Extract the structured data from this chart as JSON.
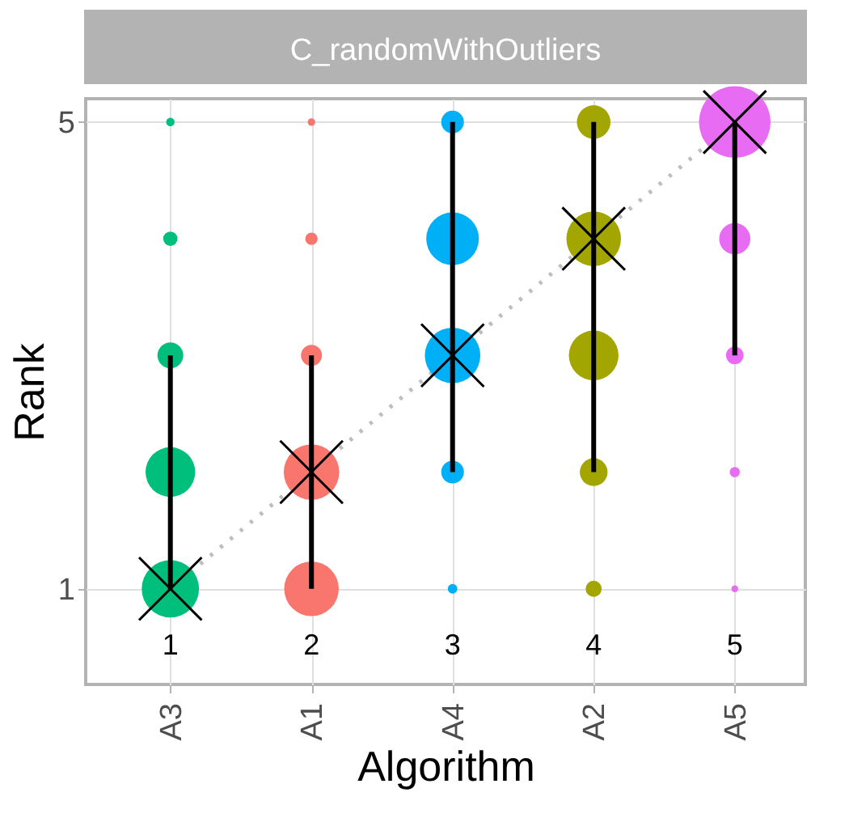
{
  "chart_data": {
    "type": "bubble",
    "title": "C_randomWithOutliers",
    "xlabel": "Algorithm",
    "ylabel": "Rank",
    "categories": [
      "A3",
      "A1",
      "A4",
      "A2",
      "A5"
    ],
    "ylim": [
      0.18,
      5.2
    ],
    "yticks": [
      1,
      5
    ],
    "grid": true,
    "annotations": [
      "1",
      "2",
      "3",
      "4",
      "5"
    ],
    "series": [
      {
        "type": "line",
        "marker": "cross",
        "line_style": "dotted",
        "color": "#bebebe",
        "values": [
          1,
          2,
          3,
          4,
          5
        ],
        "errors": [
          [
            1,
            3
          ],
          [
            1,
            3
          ],
          [
            2,
            5
          ],
          [
            2,
            5
          ],
          [
            3,
            5
          ]
        ]
      },
      {
        "color": "#00bf7d",
        "x": [
          "A3",
          "A3",
          "A3",
          "A3",
          "A3"
        ],
        "values": [
          1,
          2,
          3,
          4,
          5
        ],
        "sizes": [
          0.64,
          0.48,
          0.13,
          0.04,
          0.014
        ]
      },
      {
        "color": "#f8766d",
        "x": [
          "A1",
          "A1",
          "A1",
          "A1",
          "A1"
        ],
        "values": [
          1,
          2,
          3,
          4,
          5
        ],
        "sizes": [
          0.58,
          0.6,
          0.086,
          0.03,
          0.011
        ]
      },
      {
        "color": "#00b0f6",
        "x": [
          "A4",
          "A4",
          "A4",
          "A4",
          "A4"
        ],
        "values": [
          1,
          2,
          3,
          4,
          5
        ],
        "sizes": [
          0.018,
          0.1,
          0.6,
          0.54,
          0.1
        ]
      },
      {
        "color": "#a3a500",
        "x": [
          "A2",
          "A2",
          "A2",
          "A2",
          "A2"
        ],
        "values": [
          1,
          2,
          3,
          4,
          5
        ],
        "sizes": [
          0.05,
          0.15,
          0.48,
          0.58,
          0.22
        ]
      },
      {
        "color": "#e76bf3",
        "x": [
          "A5",
          "A5",
          "A5",
          "A5",
          "A5"
        ],
        "values": [
          1,
          2,
          3,
          4,
          5
        ],
        "sizes": [
          0.009,
          0.02,
          0.06,
          0.19,
          1
        ]
      }
    ]
  }
}
